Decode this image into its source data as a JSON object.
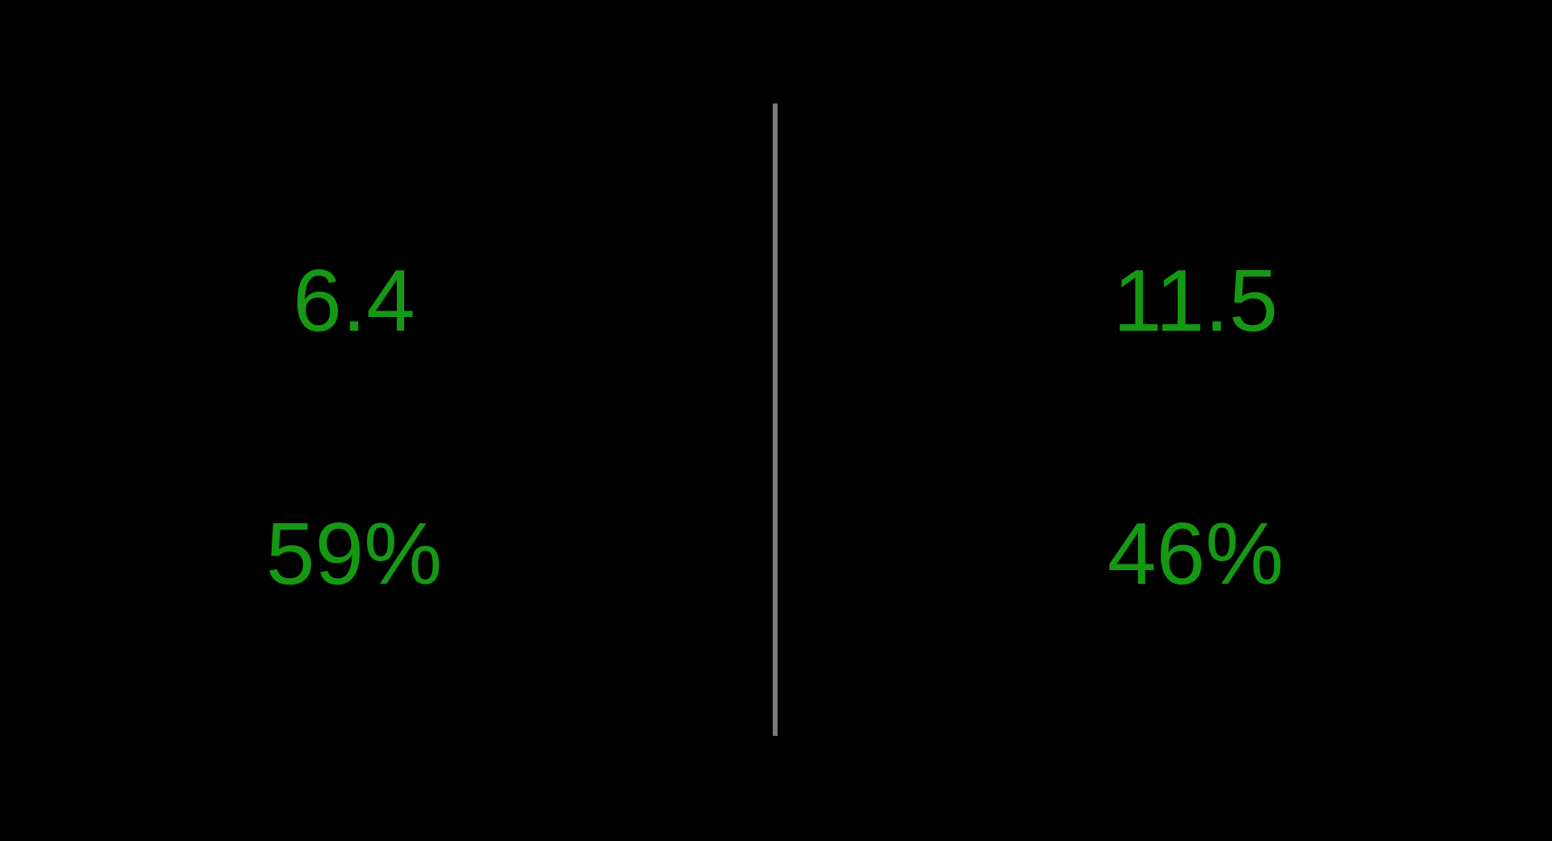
{
  "colors": {
    "background": "#000000",
    "value_text": "#159814",
    "divider": "#7a7a7a"
  },
  "left_panel": {
    "primary_value": "6.4",
    "secondary_value": "59%"
  },
  "right_panel": {
    "primary_value": "11.5",
    "secondary_value": "46%"
  }
}
